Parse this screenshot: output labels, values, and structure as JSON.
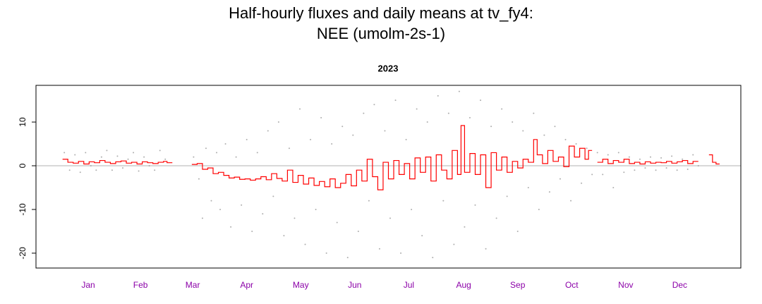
{
  "chart_data": {
    "type": "scatter",
    "title": [
      "Half-hourly fluxes and daily means at tv_fy4:",
      "NEE (umolm-2s-1)"
    ],
    "subtitle": "2023",
    "xlim": [
      -14,
      384
    ],
    "ylim": [
      -23.4,
      18.4
    ],
    "xticks": [
      {
        "value": 15.5,
        "label": "Jan"
      },
      {
        "value": 45,
        "label": "Feb"
      },
      {
        "value": 74.5,
        "label": "Mar"
      },
      {
        "value": 105,
        "label": "Apr"
      },
      {
        "value": 135.5,
        "label": "May"
      },
      {
        "value": 166,
        "label": "Jun"
      },
      {
        "value": 196.5,
        "label": "Jul"
      },
      {
        "value": 227.5,
        "label": "Aug"
      },
      {
        "value": 258,
        "label": "Sep"
      },
      {
        "value": 288.5,
        "label": "Oct"
      },
      {
        "value": 319,
        "label": "Nov"
      },
      {
        "value": 349.5,
        "label": "Dec"
      }
    ],
    "xtick_color": "#8b00a8",
    "yticks": [
      -20,
      -10,
      0,
      10
    ],
    "series": [
      {
        "type": "scatter",
        "color": "#9a9a9a",
        "x": [
          2,
          5,
          8,
          11,
          14,
          17,
          20,
          23,
          26,
          29,
          32,
          35,
          38,
          41,
          44,
          47,
          50,
          53,
          56,
          59,
          75,
          78,
          80,
          82,
          85,
          88,
          90,
          93,
          96,
          99,
          102,
          105,
          108,
          111,
          114,
          117,
          120,
          123,
          126,
          129,
          132,
          135,
          138,
          141,
          144,
          147,
          150,
          153,
          156,
          159,
          162,
          165,
          168,
          171,
          174,
          177,
          180,
          183,
          186,
          189,
          192,
          195,
          198,
          201,
          204,
          207,
          210,
          213,
          216,
          219,
          222,
          225,
          228,
          231,
          234,
          237,
          240,
          243,
          246,
          249,
          252,
          255,
          258,
          261,
          264,
          267,
          270,
          273,
          276,
          279,
          282,
          285,
          288,
          291,
          294,
          297,
          300,
          303,
          306,
          309,
          312,
          315,
          318,
          321,
          324,
          327,
          330,
          333,
          336,
          339,
          342,
          345,
          348,
          351,
          354,
          357,
          360
        ],
        "values": [
          3,
          -1,
          2.5,
          -1.5,
          3,
          0,
          -1,
          2,
          3.5,
          -1,
          2.2,
          -0.5,
          1.5,
          3,
          -1.2,
          2,
          0,
          -1,
          3.5,
          1.5,
          2,
          -3,
          -12,
          4,
          -8,
          3,
          -10,
          5,
          -14,
          2,
          -9,
          6,
          -15,
          3,
          -11,
          8,
          -7,
          10,
          -16,
          4,
          -12,
          13,
          -18,
          6,
          -10,
          11,
          -20,
          5,
          -13,
          9,
          -21,
          7,
          -15,
          12,
          -8,
          14,
          -19,
          8,
          -12,
          15,
          -20,
          6,
          -10,
          13,
          -16,
          10,
          -21,
          16,
          -8,
          12,
          -18,
          17,
          -14,
          11,
          -9,
          15,
          -19,
          9,
          -12,
          13,
          -7,
          10,
          -15,
          8,
          -5,
          12,
          -10,
          7,
          -6,
          9,
          -3,
          6,
          -8,
          5,
          -4,
          4,
          -2,
          3,
          -2,
          2.5,
          -5,
          3,
          -1.5,
          2,
          -1,
          1.5,
          -0.5,
          2,
          -1,
          1.8,
          -0.5,
          2.2,
          -1,
          1.5,
          -0.8,
          2.5,
          0
        ]
      },
      {
        "type": "step",
        "color": "#ff0000",
        "x": [
          1,
          4,
          7,
          10,
          13,
          16,
          19,
          22,
          25,
          28,
          31,
          34,
          37,
          40,
          43,
          46,
          49,
          52,
          55,
          58,
          60,
          63,
          74,
          77,
          80,
          83,
          86,
          89,
          92,
          95,
          98,
          101,
          104,
          107,
          110,
          113,
          116,
          119,
          122,
          125,
          128,
          131,
          134,
          137,
          140,
          143,
          146,
          149,
          152,
          155,
          158,
          161,
          164,
          167,
          170,
          173,
          176,
          179,
          182,
          185,
          188,
          191,
          194,
          197,
          200,
          203,
          206,
          209,
          212,
          215,
          218,
          221,
          224,
          226,
          228,
          231,
          234,
          237,
          240,
          243,
          246,
          249,
          252,
          255,
          258,
          261,
          264,
          267,
          269,
          272,
          275,
          278,
          281,
          284,
          287,
          290,
          293,
          296,
          298,
          300,
          303,
          306,
          309,
          312,
          315,
          318,
          321,
          324,
          327,
          330,
          333,
          336,
          339,
          342,
          345,
          348,
          351,
          354,
          357,
          360,
          366,
          368,
          370
        ],
        "values": [
          1.5,
          0.8,
          0.6,
          1.0,
          0.4,
          0.9,
          0.7,
          1.2,
          0.8,
          0.5,
          0.9,
          1.1,
          0.6,
          0.8,
          0.4,
          0.9,
          0.7,
          0.5,
          0.8,
          1.0,
          0.7,
          null,
          0.3,
          0.5,
          -0.8,
          -0.5,
          -1.8,
          -1.5,
          -2.2,
          -2.8,
          -2.6,
          -3.1,
          -3.0,
          -3.3,
          -3.0,
          -2.5,
          -3.2,
          -1.8,
          -2.9,
          -3.5,
          -1.0,
          -3.8,
          -2.2,
          -4.2,
          -2.8,
          -4.5,
          -3.6,
          -4.8,
          -3.0,
          -5.0,
          -4.0,
          -2.0,
          -4.6,
          -1.0,
          -3.5,
          1.5,
          -2.5,
          -5.5,
          0.8,
          -3.0,
          1.2,
          -2.0,
          0.5,
          -3.0,
          1.8,
          -1.5,
          2.0,
          -3.5,
          2.5,
          -1.0,
          -3.0,
          3.5,
          -2.0,
          9.2,
          -1.5,
          2.8,
          -2.0,
          2.5,
          -5.0,
          3.0,
          -1.0,
          2.0,
          -1.5,
          1.0,
          -0.5,
          1.5,
          0.8,
          6.0,
          2.5,
          0.5,
          3.5,
          1.0,
          2.0,
          -0.2,
          4.5,
          2.0,
          4.0,
          1.5,
          3.5,
          null,
          0.8,
          1.5,
          0.5,
          1.2,
          0.8,
          1.5,
          0.5,
          0.8,
          0.4,
          0.9,
          0.6,
          0.8,
          0.7,
          1.0,
          0.6,
          0.9,
          1.2,
          0.5,
          1.0,
          null,
          2.5,
          0.8,
          0.4
        ]
      }
    ]
  }
}
